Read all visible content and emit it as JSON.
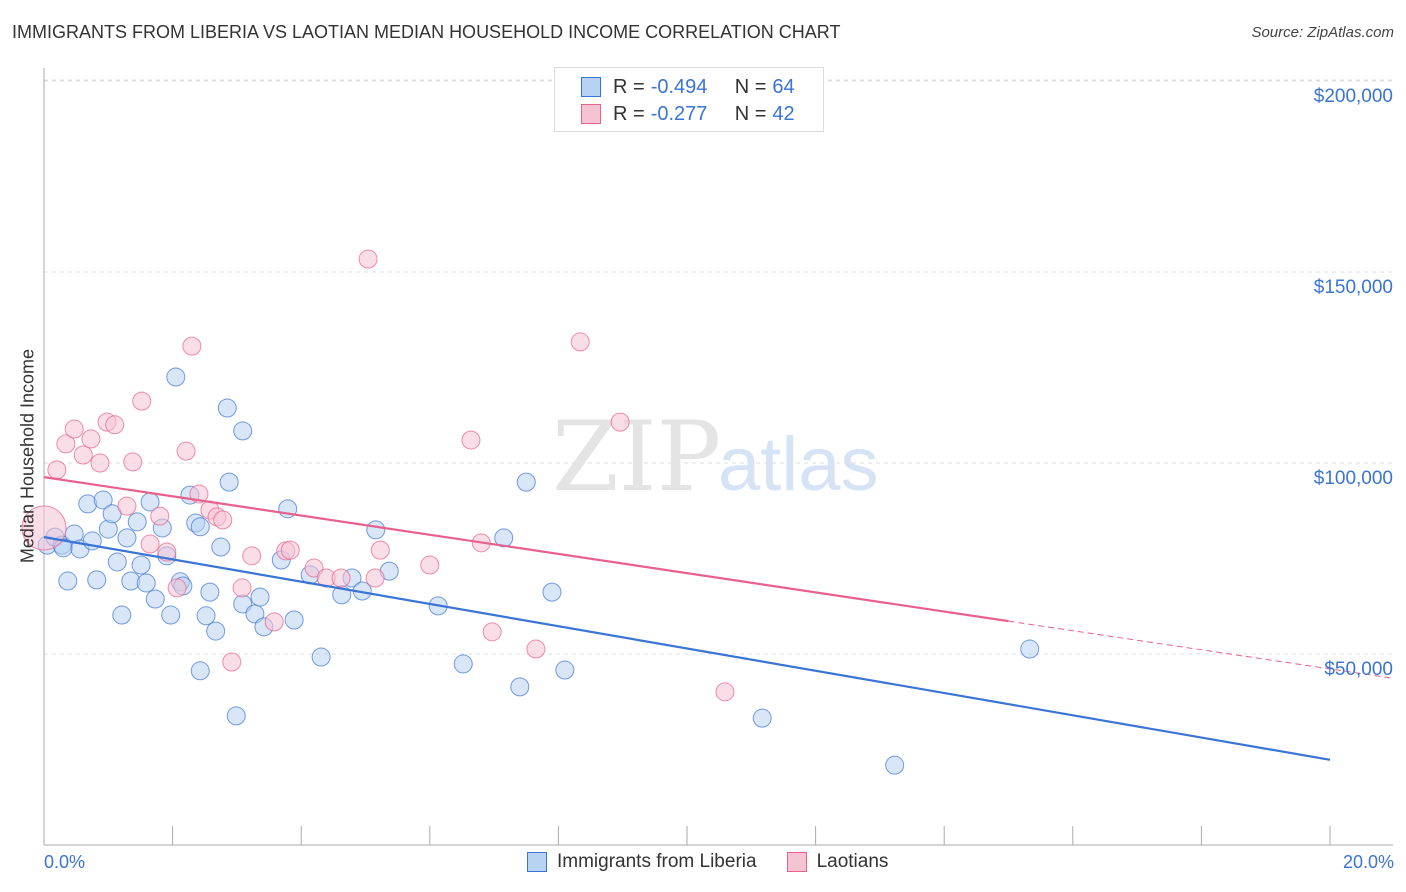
{
  "title": "IMMIGRANTS FROM LIBERIA VS LAOTIAN MEDIAN HOUSEHOLD INCOME CORRELATION CHART",
  "source": "Source: ZipAtlas.com",
  "watermark": "ZIPatlas",
  "legend": {
    "r_label": "R =",
    "n_label": "N =",
    "blue": {
      "r": "-0.494",
      "n": "64"
    },
    "pink": {
      "r": "-0.277",
      "n": "42"
    }
  },
  "colors": {
    "blue": "#3a74d4",
    "blue_fill": "#b8d2f2",
    "pink": "#e8608c",
    "pink_fill": "#f6c3d3"
  },
  "chart_data": {
    "type": "scatter",
    "title": "IMMIGRANTS FROM LIBERIA VS LAOTIAN MEDIAN HOUSEHOLD INCOME CORRELATION CHART",
    "xlabel": "",
    "ylabel": "Median Household Income",
    "xlim": [
      0,
      20
    ],
    "ylim": [
      0,
      210000
    ],
    "x_tick_labels": [
      "0.0%",
      "20.0%"
    ],
    "y_ticks": [
      {
        "v": 50000,
        "label": "$50,000"
      },
      {
        "v": 100000,
        "label": "$100,000"
      },
      {
        "v": 150000,
        "label": "$150,000"
      },
      {
        "v": 200000,
        "label": "$200,000"
      }
    ],
    "legend_placement": "bottom-center",
    "series": [
      {
        "name": "Immigrants from Liberia",
        "color": "#3a74d4",
        "trend": [
          [
            0,
            80600
          ],
          [
            20,
            22300
          ]
        ],
        "points": [
          [
            0.05,
            78.5
          ],
          [
            0.17,
            80.6
          ],
          [
            0.28,
            78.5
          ],
          [
            0.3,
            77.8
          ],
          [
            0.37,
            69.1
          ],
          [
            0.47,
            81.4
          ],
          [
            0.56,
            77.5
          ],
          [
            0.68,
            89.3
          ],
          [
            0.75,
            79.6
          ],
          [
            0.82,
            69.4
          ],
          [
            0.92,
            90.3
          ],
          [
            1.0,
            82.7
          ],
          [
            1.06,
            86.7
          ],
          [
            1.14,
            74.1
          ],
          [
            1.21,
            60.2
          ],
          [
            1.29,
            80.4
          ],
          [
            1.35,
            69.1
          ],
          [
            1.45,
            84.6
          ],
          [
            1.51,
            73.3
          ],
          [
            1.59,
            68.6
          ],
          [
            1.65,
            89.8
          ],
          [
            1.73,
            64.4
          ],
          [
            1.84,
            83.0
          ],
          [
            1.91,
            75.7
          ],
          [
            1.97,
            60.2
          ],
          [
            2.05,
            122.5
          ],
          [
            2.12,
            68.9
          ],
          [
            2.16,
            67.8
          ],
          [
            2.27,
            91.6
          ],
          [
            2.36,
            84.3
          ],
          [
            2.43,
            83.3
          ],
          [
            2.43,
            45.6
          ],
          [
            2.52,
            60.0
          ],
          [
            2.58,
            66.2
          ],
          [
            2.67,
            56.0
          ],
          [
            2.75,
            78.0
          ],
          [
            2.85,
            114.4
          ],
          [
            2.88,
            95.0
          ],
          [
            2.99,
            33.8
          ],
          [
            3.09,
            108.4
          ],
          [
            3.09,
            63.1
          ],
          [
            3.28,
            60.5
          ],
          [
            3.36,
            64.9
          ],
          [
            3.42,
            57.1
          ],
          [
            3.69,
            74.6
          ],
          [
            3.79,
            88.0
          ],
          [
            3.89,
            58.9
          ],
          [
            4.14,
            70.7
          ],
          [
            4.31,
            49.2
          ],
          [
            4.63,
            65.5
          ],
          [
            4.79,
            69.9
          ],
          [
            4.95,
            66.5
          ],
          [
            5.16,
            82.5
          ],
          [
            5.37,
            71.7
          ],
          [
            6.13,
            62.6
          ],
          [
            6.52,
            47.4
          ],
          [
            7.15,
            80.4
          ],
          [
            7.4,
            41.4
          ],
          [
            7.5,
            95.0
          ],
          [
            7.9,
            66.2
          ],
          [
            8.1,
            45.8
          ],
          [
            11.17,
            33.2
          ],
          [
            13.23,
            20.9
          ],
          [
            15.33,
            51.3
          ]
        ]
      },
      {
        "name": "Laotians",
        "color": "#e8608c",
        "trend": [
          [
            0,
            96300
          ],
          [
            15,
            58600
          ],
          [
            20,
            46100
          ]
        ],
        "points": [
          [
            0.0,
            83.0
          ],
          [
            0.2,
            98.2
          ],
          [
            0.34,
            105.0
          ],
          [
            0.47,
            108.9
          ],
          [
            0.61,
            102.1
          ],
          [
            0.73,
            106.3
          ],
          [
            0.87,
            100.0
          ],
          [
            0.98,
            110.7
          ],
          [
            1.1,
            110.0
          ],
          [
            1.29,
            88.7
          ],
          [
            1.38,
            100.3
          ],
          [
            1.52,
            116.2
          ],
          [
            1.65,
            78.8
          ],
          [
            1.8,
            86.1
          ],
          [
            1.91,
            76.7
          ],
          [
            2.07,
            67.3
          ],
          [
            2.21,
            103.1
          ],
          [
            2.3,
            130.6
          ],
          [
            2.41,
            91.9
          ],
          [
            2.58,
            87.7
          ],
          [
            2.69,
            85.9
          ],
          [
            2.78,
            85.1
          ],
          [
            2.92,
            47.9
          ],
          [
            3.08,
            67.3
          ],
          [
            3.23,
            75.7
          ],
          [
            3.58,
            58.4
          ],
          [
            3.76,
            77.0
          ],
          [
            3.83,
            77.2
          ],
          [
            4.2,
            72.5
          ],
          [
            4.39,
            69.9
          ],
          [
            4.62,
            69.9
          ],
          [
            5.04,
            153.4
          ],
          [
            5.15,
            69.9
          ],
          [
            5.23,
            77.2
          ],
          [
            6.0,
            73.3
          ],
          [
            6.64,
            106.0
          ],
          [
            6.8,
            79.1
          ],
          [
            6.97,
            55.8
          ],
          [
            7.65,
            51.3
          ],
          [
            8.34,
            131.7
          ],
          [
            8.96,
            110.7
          ],
          [
            10.59,
            40.1
          ]
        ]
      }
    ]
  }
}
